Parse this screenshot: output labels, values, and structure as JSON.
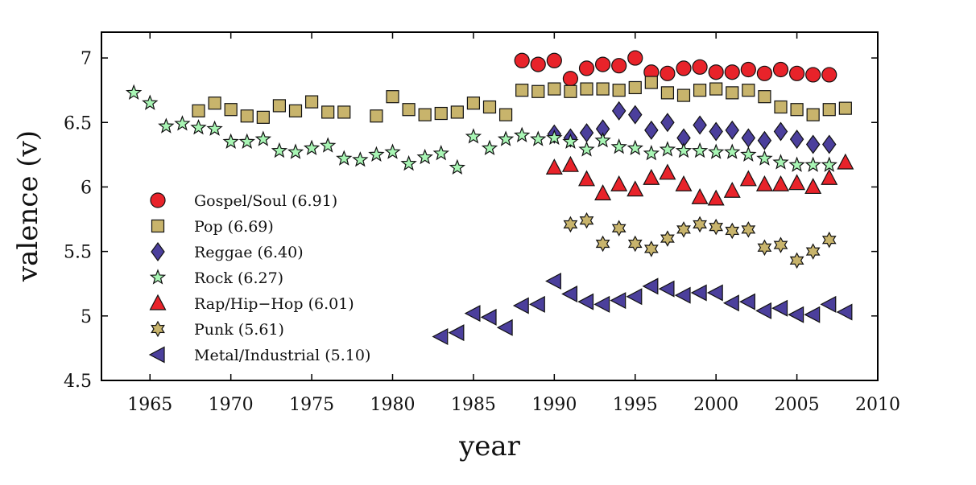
{
  "chart_data": {
    "type": "scatter",
    "title": "",
    "xlabel": "year",
    "ylabel": "valence (v)",
    "xlim": [
      1962,
      2010
    ],
    "ylim": [
      4.5,
      7.2
    ],
    "xticks": [
      1965,
      1970,
      1975,
      1980,
      1985,
      1990,
      1995,
      2000,
      2005,
      2010
    ],
    "yticks": [
      4.5,
      5,
      5.5,
      6,
      6.5,
      7
    ],
    "xtick_labels": [
      "1965",
      "1970",
      "1975",
      "1980",
      "1985",
      "1990",
      "1995",
      "2000",
      "2005",
      "2010"
    ],
    "ytick_labels": [
      "4.5",
      "5",
      "5.5",
      "6",
      "6.5",
      "7"
    ],
    "grid": false,
    "legend_position": "left",
    "series": [
      {
        "name": "Gospel/Soul (6.91)",
        "marker": "circle",
        "color": "#e8232a",
        "x": [
          1988,
          1989,
          1990,
          1991,
          1992,
          1993,
          1994,
          1995,
          1996,
          1997,
          1998,
          1999,
          2000,
          2001,
          2002,
          2003,
          2004,
          2005,
          2006,
          2007
        ],
        "y": [
          6.98,
          6.95,
          6.98,
          6.84,
          6.92,
          6.95,
          6.94,
          7.0,
          6.89,
          6.88,
          6.92,
          6.93,
          6.89,
          6.89,
          6.91,
          6.88,
          6.91,
          6.88,
          6.87,
          6.87
        ]
      },
      {
        "name": "Pop (6.69)",
        "marker": "square",
        "color": "#c8b46c",
        "x": [
          1968,
          1969,
          1970,
          1971,
          1972,
          1973,
          1974,
          1975,
          1976,
          1977,
          1979,
          1980,
          1981,
          1982,
          1983,
          1984,
          1985,
          1986,
          1987,
          1988,
          1989,
          1990,
          1991,
          1992,
          1993,
          1994,
          1995,
          1996,
          1997,
          1998,
          1999,
          2000,
          2001,
          2002,
          2003,
          2004,
          2005,
          2006,
          2007,
          2008
        ],
        "y": [
          6.59,
          6.65,
          6.6,
          6.55,
          6.54,
          6.63,
          6.59,
          6.66,
          6.58,
          6.58,
          6.55,
          6.7,
          6.6,
          6.56,
          6.57,
          6.58,
          6.65,
          6.62,
          6.56,
          6.75,
          6.74,
          6.76,
          6.74,
          6.76,
          6.76,
          6.75,
          6.77,
          6.81,
          6.73,
          6.71,
          6.75,
          6.76,
          6.73,
          6.75,
          6.7,
          6.62,
          6.6,
          6.56,
          6.6,
          6.61
        ]
      },
      {
        "name": "Reggae (6.40)",
        "marker": "diamond",
        "color": "#4b3f9c",
        "x": [
          1990,
          1991,
          1992,
          1993,
          1994,
          1995,
          1996,
          1997,
          1998,
          1999,
          2000,
          2001,
          2002,
          2003,
          2004,
          2005,
          2006,
          2007
        ],
        "y": [
          6.41,
          6.38,
          6.42,
          6.45,
          6.59,
          6.56,
          6.44,
          6.5,
          6.38,
          6.48,
          6.43,
          6.44,
          6.38,
          6.36,
          6.43,
          6.37,
          6.33,
          6.33
        ]
      },
      {
        "name": "Rock (6.27)",
        "marker": "star",
        "color": "#a8f5b4",
        "x": [
          1964,
          1965,
          1966,
          1967,
          1968,
          1969,
          1970,
          1971,
          1972,
          1973,
          1974,
          1975,
          1976,
          1977,
          1978,
          1979,
          1980,
          1981,
          1982,
          1983,
          1984,
          1985,
          1986,
          1987,
          1988,
          1989,
          1990,
          1991,
          1992,
          1993,
          1994,
          1995,
          1996,
          1997,
          1998,
          1999,
          2000,
          2001,
          2002,
          2003,
          2004,
          2005,
          2006,
          2007
        ],
        "y": [
          6.73,
          6.65,
          6.47,
          6.49,
          6.46,
          6.45,
          6.35,
          6.35,
          6.37,
          6.28,
          6.27,
          6.3,
          6.32,
          6.22,
          6.21,
          6.25,
          6.27,
          6.18,
          6.23,
          6.26,
          6.15,
          6.39,
          6.3,
          6.37,
          6.4,
          6.37,
          6.38,
          6.35,
          6.29,
          6.36,
          6.31,
          6.3,
          6.26,
          6.29,
          6.28,
          6.28,
          6.27,
          6.27,
          6.25,
          6.22,
          6.19,
          6.17,
          6.17,
          6.17
        ]
      },
      {
        "name": "Rap/Hip−Hop (6.01)",
        "marker": "triangle-up",
        "color": "#e8232a",
        "x": [
          1990,
          1991,
          1992,
          1993,
          1994,
          1995,
          1996,
          1997,
          1998,
          1999,
          2000,
          2001,
          2002,
          2003,
          2004,
          2005,
          2006,
          2007,
          2008
        ],
        "y": [
          6.15,
          6.17,
          6.06,
          5.95,
          6.02,
          5.98,
          6.07,
          6.11,
          6.02,
          5.92,
          5.91,
          5.97,
          6.06,
          6.02,
          6.02,
          6.03,
          6.0,
          6.07,
          6.19
        ]
      },
      {
        "name": "Punk (5.61)",
        "marker": "hexagram",
        "color": "#c8b46c",
        "x": [
          1991,
          1992,
          1993,
          1994,
          1995,
          1996,
          1997,
          1998,
          1999,
          2000,
          2001,
          2002,
          2003,
          2004,
          2005,
          2006,
          2007
        ],
        "y": [
          5.71,
          5.74,
          5.56,
          5.68,
          5.56,
          5.52,
          5.6,
          5.67,
          5.71,
          5.69,
          5.66,
          5.67,
          5.53,
          5.55,
          5.43,
          5.5,
          5.59
        ]
      },
      {
        "name": "Metal/Industrial (5.10)",
        "marker": "triangle-left",
        "color": "#4b3f9c",
        "x": [
          1983,
          1984,
          1985,
          1986,
          1987,
          1988,
          1989,
          1990,
          1991,
          1992,
          1993,
          1994,
          1995,
          1996,
          1997,
          1998,
          1999,
          2000,
          2001,
          2002,
          2003,
          2004,
          2005,
          2006,
          2007,
          2008
        ],
        "y": [
          4.84,
          4.87,
          5.02,
          4.99,
          4.91,
          5.08,
          5.09,
          5.27,
          5.17,
          5.11,
          5.09,
          5.12,
          5.15,
          5.23,
          5.21,
          5.16,
          5.18,
          5.18,
          5.1,
          5.11,
          5.04,
          5.06,
          5.01,
          5.01,
          5.09,
          5.03
        ]
      }
    ]
  }
}
